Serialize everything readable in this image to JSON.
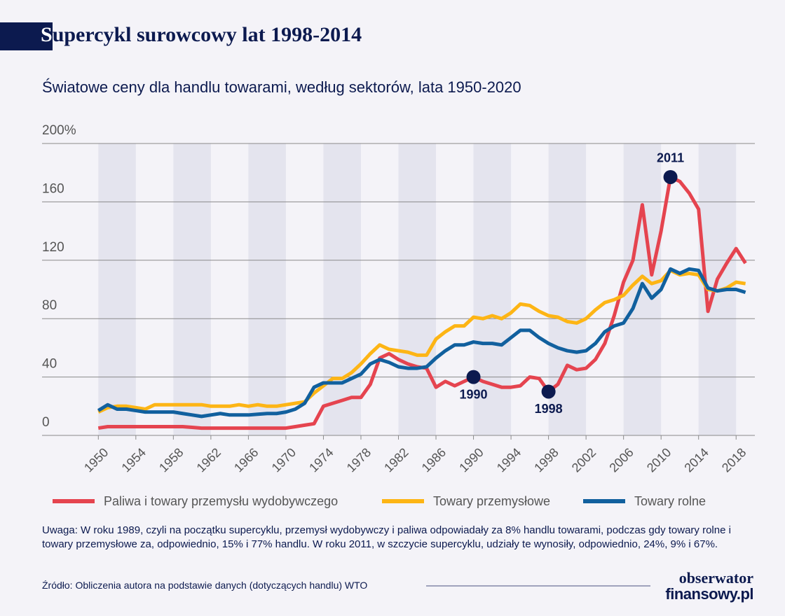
{
  "chart_data": {
    "type": "line",
    "title": "Supercykl surowcowy lat 1998-2014",
    "subtitle": "Światowe ceny dla handlu towarami, według sektorów, lata 1950-2020",
    "x": [
      1950,
      1951,
      1952,
      1953,
      1954,
      1955,
      1956,
      1957,
      1958,
      1959,
      1960,
      1961,
      1962,
      1963,
      1964,
      1965,
      1966,
      1967,
      1968,
      1969,
      1970,
      1971,
      1972,
      1973,
      1974,
      1975,
      1976,
      1977,
      1978,
      1979,
      1980,
      1981,
      1982,
      1983,
      1984,
      1985,
      1986,
      1987,
      1988,
      1989,
      1990,
      1991,
      1992,
      1993,
      1994,
      1995,
      1996,
      1997,
      1998,
      1999,
      2000,
      2001,
      2002,
      2003,
      2004,
      2005,
      2006,
      2007,
      2008,
      2009,
      2010,
      2011,
      2012,
      2013,
      2014,
      2015,
      2016,
      2017,
      2018,
      2019
    ],
    "series": [
      {
        "name": "Paliwa i towary przemysłu wydobywczego",
        "color": "#e5444f",
        "values": [
          5,
          6,
          6,
          6,
          6,
          6,
          6,
          6,
          6,
          6,
          5.5,
          5,
          5,
          5,
          5,
          5,
          5,
          5,
          5,
          5,
          5,
          6,
          7,
          8,
          20,
          22,
          24,
          26,
          26,
          35,
          53,
          56,
          52,
          49,
          47,
          46,
          33,
          37,
          34,
          37,
          40,
          37,
          35,
          33,
          33,
          34,
          40,
          39,
          30,
          35,
          48,
          45,
          46,
          52,
          63,
          82,
          105,
          120,
          158,
          110,
          140,
          177,
          174,
          166,
          155,
          85,
          107,
          118,
          128,
          118
        ]
      },
      {
        "name": "Towary przemysłowe",
        "color": "#fdb515",
        "values": [
          16,
          19,
          20,
          20,
          19,
          18,
          21,
          21,
          21,
          21,
          21,
          21,
          20,
          20,
          20,
          21,
          20,
          21,
          20,
          20,
          21,
          22,
          23,
          29,
          34,
          39,
          39,
          43,
          49,
          56,
          62,
          59,
          58,
          57,
          55,
          55,
          66,
          71,
          75,
          75,
          81,
          80,
          82,
          80,
          84,
          90,
          89,
          85,
          82,
          81,
          78,
          77,
          80,
          86,
          91,
          93,
          96,
          103,
          109,
          104,
          106,
          113,
          110,
          111,
          110,
          100,
          99,
          101,
          105,
          104
        ]
      },
      {
        "name": "Towary rolne",
        "color": "#11609e",
        "values": [
          17,
          21,
          18,
          18,
          17,
          16,
          16,
          16,
          16,
          15,
          14,
          13,
          14,
          15,
          14,
          14,
          14,
          14.5,
          15,
          15,
          16,
          18,
          22,
          33,
          36,
          36,
          36,
          39,
          42,
          49,
          52,
          50,
          47,
          46,
          46,
          47,
          53,
          58,
          62,
          62,
          64,
          63,
          63,
          62,
          67,
          72,
          72,
          67,
          63,
          60,
          58,
          57,
          58,
          63,
          71,
          75,
          77,
          87,
          104,
          94,
          100,
          114,
          111,
          114,
          113,
          101,
          99,
          100,
          100,
          98
        ]
      }
    ],
    "annotations": [
      {
        "x": 1990,
        "y": 40,
        "label": "1990"
      },
      {
        "x": 1998,
        "y": 30,
        "label": "1998"
      },
      {
        "x": 2011,
        "y": 177,
        "label": "2011"
      }
    ],
    "xlim": [
      1944,
      2020
    ],
    "xticks": [
      1950,
      1954,
      1958,
      1962,
      1966,
      1970,
      1974,
      1978,
      1982,
      1986,
      1990,
      1994,
      1998,
      2002,
      2006,
      2010,
      2014,
      2018
    ],
    "ylim": [
      0,
      200
    ],
    "yticks": [
      0,
      40,
      80,
      120,
      160,
      {
        "value": 200,
        "label": "200%"
      }
    ],
    "grid": true,
    "legend": "bottom"
  },
  "note": "Uwaga: W roku 1989, czyli na początku supercyklu, przemysł wydobywczy i paliwa odpowiadały za 8% handlu towarami, podczas gdy towary rolne i towary przemysłowe za, odpowiednio, 15% i 77% handlu. W roku 2011, w szczycie supercyklu, udziały te wynosiły, odpowiednio, 24%, 9% i 67%.",
  "source": "Źródło: Obliczenia autora na podstawie danych (dotyczących handlu) WTO",
  "logo": {
    "line1": "obserwator",
    "line2": "finansowy.pl"
  }
}
